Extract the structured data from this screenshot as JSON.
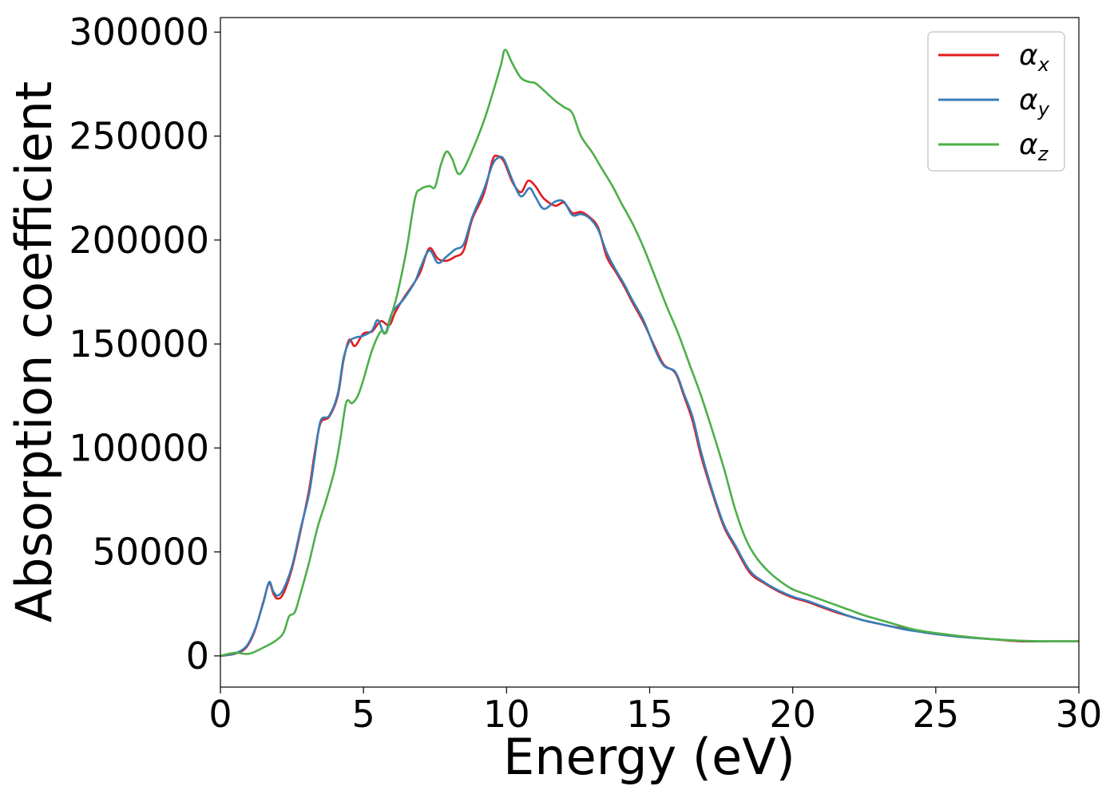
{
  "chart_data": {
    "type": "line",
    "title": "",
    "xlabel": "Energy (eV)",
    "ylabel": "Absorption coefficient",
    "xlim": [
      0,
      30
    ],
    "ylim": [
      -15000,
      307000
    ],
    "xticks": [
      0,
      5,
      10,
      15,
      20,
      25,
      30
    ],
    "xtick_labels": [
      "0",
      "5",
      "10",
      "15",
      "20",
      "25",
      "30"
    ],
    "yticks": [
      0,
      50000,
      100000,
      150000,
      200000,
      250000,
      300000
    ],
    "ytick_labels": [
      "0",
      "50000",
      "100000",
      "150000",
      "200000",
      "250000",
      "300000"
    ],
    "grid": false,
    "legend_position": "top-right",
    "series": [
      {
        "name": "αx",
        "symbol": "α",
        "subscript": "x",
        "color": "#e41a1c",
        "points": [
          [
            0,
            0
          ],
          [
            0.5,
            1000
          ],
          [
            0.9,
            4000
          ],
          [
            1.2,
            12000
          ],
          [
            1.5,
            26000
          ],
          [
            1.7,
            35000
          ],
          [
            1.85,
            30000
          ],
          [
            2.0,
            27500
          ],
          [
            2.2,
            30000
          ],
          [
            2.5,
            42000
          ],
          [
            2.8,
            60000
          ],
          [
            3.1,
            80000
          ],
          [
            3.3,
            98000
          ],
          [
            3.5,
            112000
          ],
          [
            3.8,
            115000
          ],
          [
            4.1,
            125000
          ],
          [
            4.3,
            142000
          ],
          [
            4.5,
            152000
          ],
          [
            4.7,
            149000
          ],
          [
            5.0,
            155000
          ],
          [
            5.3,
            156000
          ],
          [
            5.6,
            161000
          ],
          [
            5.9,
            159000
          ],
          [
            6.1,
            165000
          ],
          [
            6.4,
            172000
          ],
          [
            6.8,
            180000
          ],
          [
            7.0,
            185000
          ],
          [
            7.3,
            196000
          ],
          [
            7.6,
            191000
          ],
          [
            7.9,
            190000
          ],
          [
            8.2,
            192000
          ],
          [
            8.5,
            195000
          ],
          [
            8.8,
            210000
          ],
          [
            9.2,
            222000
          ],
          [
            9.5,
            238000
          ],
          [
            9.65,
            240500
          ],
          [
            9.9,
            238000
          ],
          [
            10.2,
            228000
          ],
          [
            10.5,
            223000
          ],
          [
            10.75,
            228500
          ],
          [
            11.0,
            226000
          ],
          [
            11.3,
            220000
          ],
          [
            11.7,
            216500
          ],
          [
            12.0,
            218000
          ],
          [
            12.3,
            213000
          ],
          [
            12.6,
            213500
          ],
          [
            12.9,
            211000
          ],
          [
            13.2,
            206000
          ],
          [
            13.5,
            192000
          ],
          [
            13.8,
            185000
          ],
          [
            14.1,
            178000
          ],
          [
            14.4,
            170000
          ],
          [
            14.8,
            160000
          ],
          [
            15.2,
            148000
          ],
          [
            15.5,
            140000
          ],
          [
            15.9,
            136000
          ],
          [
            16.2,
            125000
          ],
          [
            16.5,
            113000
          ],
          [
            16.8,
            96000
          ],
          [
            17.2,
            78000
          ],
          [
            17.6,
            62000
          ],
          [
            18.0,
            52000
          ],
          [
            18.5,
            40000
          ],
          [
            19.0,
            35000
          ],
          [
            19.5,
            31000
          ],
          [
            20.0,
            28000
          ],
          [
            20.5,
            26000
          ],
          [
            21.0,
            23500
          ],
          [
            21.5,
            21000
          ],
          [
            22.0,
            19000
          ],
          [
            22.5,
            17000
          ],
          [
            23.0,
            15500
          ],
          [
            23.5,
            14000
          ],
          [
            24.0,
            13000
          ],
          [
            24.5,
            11500
          ],
          [
            25.0,
            10500
          ],
          [
            26.0,
            9000
          ],
          [
            27.0,
            8000
          ],
          [
            28.0,
            7000
          ],
          [
            29.0,
            7000
          ],
          [
            30.0,
            7000
          ]
        ]
      },
      {
        "name": "αy",
        "symbol": "α",
        "subscript": "y",
        "color": "#377eb8",
        "points": [
          [
            0,
            0
          ],
          [
            0.5,
            1200
          ],
          [
            0.9,
            4500
          ],
          [
            1.2,
            12500
          ],
          [
            1.5,
            25500
          ],
          [
            1.7,
            35500
          ],
          [
            1.85,
            31000
          ],
          [
            2.0,
            29000
          ],
          [
            2.2,
            32000
          ],
          [
            2.5,
            43000
          ],
          [
            2.8,
            61000
          ],
          [
            3.1,
            78000
          ],
          [
            3.3,
            96000
          ],
          [
            3.5,
            113000
          ],
          [
            3.8,
            115500
          ],
          [
            4.1,
            126000
          ],
          [
            4.3,
            143000
          ],
          [
            4.5,
            151000
          ],
          [
            4.7,
            153000
          ],
          [
            5.0,
            154000
          ],
          [
            5.3,
            156500
          ],
          [
            5.5,
            161500
          ],
          [
            5.75,
            155000
          ],
          [
            6.0,
            165000
          ],
          [
            6.4,
            171500
          ],
          [
            6.8,
            180000
          ],
          [
            7.0,
            187000
          ],
          [
            7.3,
            195000
          ],
          [
            7.6,
            189000
          ],
          [
            7.9,
            192000
          ],
          [
            8.2,
            195500
          ],
          [
            8.5,
            198000
          ],
          [
            8.8,
            211000
          ],
          [
            9.2,
            224000
          ],
          [
            9.5,
            236000
          ],
          [
            9.7,
            239500
          ],
          [
            9.9,
            239000
          ],
          [
            10.2,
            229000
          ],
          [
            10.5,
            221000
          ],
          [
            10.8,
            225000
          ],
          [
            11.0,
            221000
          ],
          [
            11.3,
            215000
          ],
          [
            11.7,
            218500
          ],
          [
            12.0,
            218500
          ],
          [
            12.3,
            212000
          ],
          [
            12.6,
            212500
          ],
          [
            12.9,
            210500
          ],
          [
            13.2,
            205000
          ],
          [
            13.5,
            194000
          ],
          [
            13.8,
            186000
          ],
          [
            14.1,
            179000
          ],
          [
            14.4,
            171000
          ],
          [
            14.8,
            161000
          ],
          [
            15.2,
            147000
          ],
          [
            15.5,
            139500
          ],
          [
            15.9,
            136500
          ],
          [
            16.2,
            126000
          ],
          [
            16.5,
            115000
          ],
          [
            16.8,
            98000
          ],
          [
            17.2,
            79000
          ],
          [
            17.6,
            63000
          ],
          [
            18.0,
            53000
          ],
          [
            18.5,
            41000
          ],
          [
            19.0,
            35500
          ],
          [
            19.5,
            31500
          ],
          [
            20.0,
            28500
          ],
          [
            20.5,
            26500
          ],
          [
            21.0,
            24000
          ],
          [
            21.5,
            21500
          ],
          [
            22.0,
            19000
          ],
          [
            22.5,
            17000
          ],
          [
            23.0,
            15500
          ],
          [
            23.5,
            14000
          ],
          [
            24.0,
            12500
          ],
          [
            24.5,
            11500
          ],
          [
            25.0,
            10500
          ],
          [
            26.0,
            9000
          ],
          [
            27.0,
            8000
          ],
          [
            28.0,
            7200
          ],
          [
            29.0,
            7000
          ],
          [
            30.0,
            7000
          ]
        ]
      },
      {
        "name": "αz",
        "symbol": "α",
        "subscript": "z",
        "color": "#4daf4a",
        "points": [
          [
            0,
            0
          ],
          [
            0.5,
            1500
          ],
          [
            1.0,
            1000
          ],
          [
            1.5,
            4000
          ],
          [
            1.9,
            7000
          ],
          [
            2.2,
            11000
          ],
          [
            2.4,
            19000
          ],
          [
            2.6,
            21000
          ],
          [
            2.8,
            30000
          ],
          [
            3.1,
            45000
          ],
          [
            3.4,
            62000
          ],
          [
            3.7,
            75000
          ],
          [
            4.0,
            90000
          ],
          [
            4.2,
            105000
          ],
          [
            4.4,
            122000
          ],
          [
            4.6,
            121500
          ],
          [
            4.8,
            125000
          ],
          [
            5.0,
            133000
          ],
          [
            5.3,
            147000
          ],
          [
            5.6,
            156000
          ],
          [
            5.8,
            155500
          ],
          [
            6.0,
            165000
          ],
          [
            6.2,
            175000
          ],
          [
            6.5,
            195000
          ],
          [
            6.8,
            220000
          ],
          [
            7.0,
            224500
          ],
          [
            7.3,
            226000
          ],
          [
            7.5,
            225500
          ],
          [
            7.7,
            236000
          ],
          [
            7.9,
            242500
          ],
          [
            8.1,
            239000
          ],
          [
            8.3,
            232000
          ],
          [
            8.5,
            234000
          ],
          [
            8.8,
            243000
          ],
          [
            9.2,
            257000
          ],
          [
            9.5,
            270000
          ],
          [
            9.8,
            284000
          ],
          [
            9.95,
            291500
          ],
          [
            10.2,
            285000
          ],
          [
            10.5,
            278000
          ],
          [
            10.8,
            276000
          ],
          [
            11.0,
            275500
          ],
          [
            11.3,
            272000
          ],
          [
            11.7,
            267000
          ],
          [
            12.0,
            264000
          ],
          [
            12.3,
            261000
          ],
          [
            12.6,
            250000
          ],
          [
            13.0,
            242000
          ],
          [
            13.3,
            235000
          ],
          [
            13.7,
            226000
          ],
          [
            14.0,
            218000
          ],
          [
            14.4,
            208000
          ],
          [
            14.8,
            196000
          ],
          [
            15.2,
            182000
          ],
          [
            15.6,
            168000
          ],
          [
            16.0,
            155000
          ],
          [
            16.4,
            140000
          ],
          [
            16.8,
            125000
          ],
          [
            17.2,
            108000
          ],
          [
            17.6,
            90000
          ],
          [
            18.0,
            70000
          ],
          [
            18.4,
            55000
          ],
          [
            18.8,
            46000
          ],
          [
            19.2,
            40000
          ],
          [
            19.6,
            35500
          ],
          [
            20.0,
            32000
          ],
          [
            20.5,
            29500
          ],
          [
            21.0,
            27000
          ],
          [
            21.5,
            24500
          ],
          [
            22.0,
            22000
          ],
          [
            22.5,
            19500
          ],
          [
            23.0,
            17500
          ],
          [
            23.5,
            15500
          ],
          [
            24.0,
            13500
          ],
          [
            24.5,
            12000
          ],
          [
            25.0,
            11000
          ],
          [
            26.0,
            9300
          ],
          [
            27.0,
            8000
          ],
          [
            28.0,
            7300
          ],
          [
            29.0,
            7000
          ],
          [
            30.0,
            7000
          ]
        ]
      }
    ]
  }
}
